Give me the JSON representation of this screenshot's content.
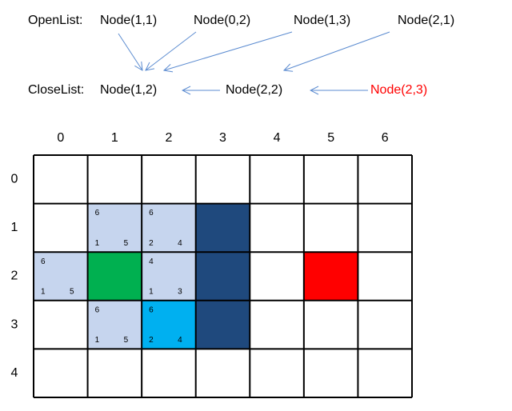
{
  "open_list": {
    "label": "OpenList:",
    "nodes": [
      "Node(1,1)",
      "Node(0,2)",
      "Node(1,3)",
      "Node(2,1)"
    ]
  },
  "close_list": {
    "label": "CloseList:",
    "nodes": [
      "Node(1,2)",
      "Node(2,2)",
      "Node(2,3)"
    ]
  },
  "grid": {
    "columns": [
      "0",
      "1",
      "2",
      "3",
      "4",
      "5",
      "6"
    ],
    "rows": [
      "0",
      "1",
      "2",
      "3",
      "4"
    ],
    "cells": [
      [
        null,
        null,
        null,
        null,
        null,
        null,
        null
      ],
      [
        null,
        {
          "f": 6,
          "g": 1,
          "h": 5
        },
        {
          "f": 6,
          "g": 2,
          "h": 4
        },
        null,
        null,
        null,
        null
      ],
      [
        {
          "f": 6,
          "g": 1,
          "h": 5
        },
        null,
        {
          "f": 4,
          "g": 1,
          "h": 3
        },
        null,
        null,
        null,
        null
      ],
      [
        null,
        {
          "f": 6,
          "g": 1,
          "h": 5
        },
        {
          "f": 6,
          "g": 2,
          "h": 4
        },
        null,
        null,
        null,
        null
      ],
      [
        null,
        null,
        null,
        null,
        null,
        null,
        null
      ]
    ]
  }
}
